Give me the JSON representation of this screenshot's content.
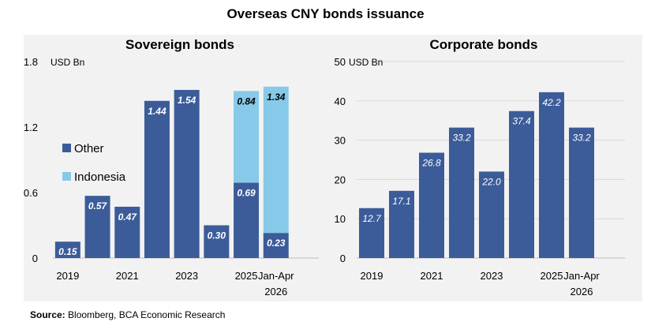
{
  "page": {
    "title": "Overseas CNY bonds issuance",
    "source_label": "Source:",
    "source_text": " Bloomberg, BCA Economic Research"
  },
  "colors": {
    "other": "#3b5c99",
    "indonesia": "#87c9e8",
    "panel": "#f2f2f2",
    "grid": "#d9d9d9"
  },
  "chart_data": [
    {
      "type": "bar",
      "stacked": true,
      "title": "Sovereign bonds",
      "ylabel": "USD Bn",
      "ylim": [
        0,
        1.8
      ],
      "yticks": [
        "0",
        "0.6",
        "1.2",
        "1.8"
      ],
      "ytick_values": [
        0,
        0.6,
        1.2,
        1.8
      ],
      "categories": [
        "2019",
        "2020",
        "2021",
        "2022",
        "2023",
        "2024",
        "2025",
        "Jan-Apr 2026"
      ],
      "category_labels": [
        "2019",
        "",
        "2021",
        "",
        "2023",
        "",
        "2025",
        "Jan-Apr\n2026"
      ],
      "grid": false,
      "legend_position": "left",
      "series": [
        {
          "name": "Other",
          "values": [
            0.15,
            0.57,
            0.47,
            1.44,
            1.54,
            0.3,
            0.69,
            0.23
          ],
          "labels": [
            "0.15",
            "0.57",
            "0.47",
            "1.44",
            "1.54",
            "0.30",
            "0.69",
            "0.23"
          ]
        },
        {
          "name": "Indonesia",
          "values": [
            0,
            0,
            0,
            0,
            0,
            0,
            0.84,
            1.34
          ],
          "labels": [
            "",
            "",
            "",
            "",
            "",
            "",
            "0.84",
            "1.34"
          ]
        }
      ]
    },
    {
      "type": "bar",
      "title": "Corporate bonds",
      "ylabel": "USD Bn",
      "ylim": [
        0,
        50
      ],
      "yticks": [
        "0",
        "10",
        "20",
        "30",
        "40",
        "50"
      ],
      "ytick_values": [
        0,
        10,
        20,
        30,
        40,
        50
      ],
      "categories": [
        "2019",
        "2020",
        "2021",
        "2022",
        "2023",
        "2024",
        "2025",
        "Jan-Apr 2026"
      ],
      "category_labels": [
        "2019",
        "",
        "2021",
        "",
        "2023",
        "",
        "2025",
        "Jan-Apr\n2026"
      ],
      "grid": true,
      "series": [
        {
          "values": [
            12.7,
            17.1,
            26.8,
            33.2,
            22.0,
            37.4,
            42.2,
            33.2
          ],
          "labels": [
            "12.7",
            "17.1",
            "26.8",
            "33.2",
            "22.0",
            "37.4",
            "42.2",
            "33.2"
          ]
        }
      ]
    }
  ]
}
